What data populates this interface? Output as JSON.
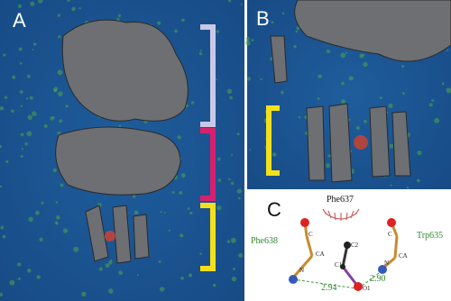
{
  "panels": [
    {
      "label": "A"
    },
    {
      "label": "B"
    },
    {
      "label": "C"
    }
  ],
  "residues": [
    {
      "name": "Phe637"
    },
    {
      "name": "Phe638"
    },
    {
      "name": "Trp635"
    }
  ],
  "atoms": [
    {
      "label": "C"
    },
    {
      "label": "CA"
    },
    {
      "label": "N"
    },
    {
      "label": "C2"
    },
    {
      "label": "C1"
    },
    {
      "label": "O1"
    },
    {
      "label": "C"
    },
    {
      "label": "CA"
    },
    {
      "label": "N"
    }
  ],
  "distances": [
    {
      "label": "2.94"
    },
    {
      "label": "2.90"
    }
  ]
}
